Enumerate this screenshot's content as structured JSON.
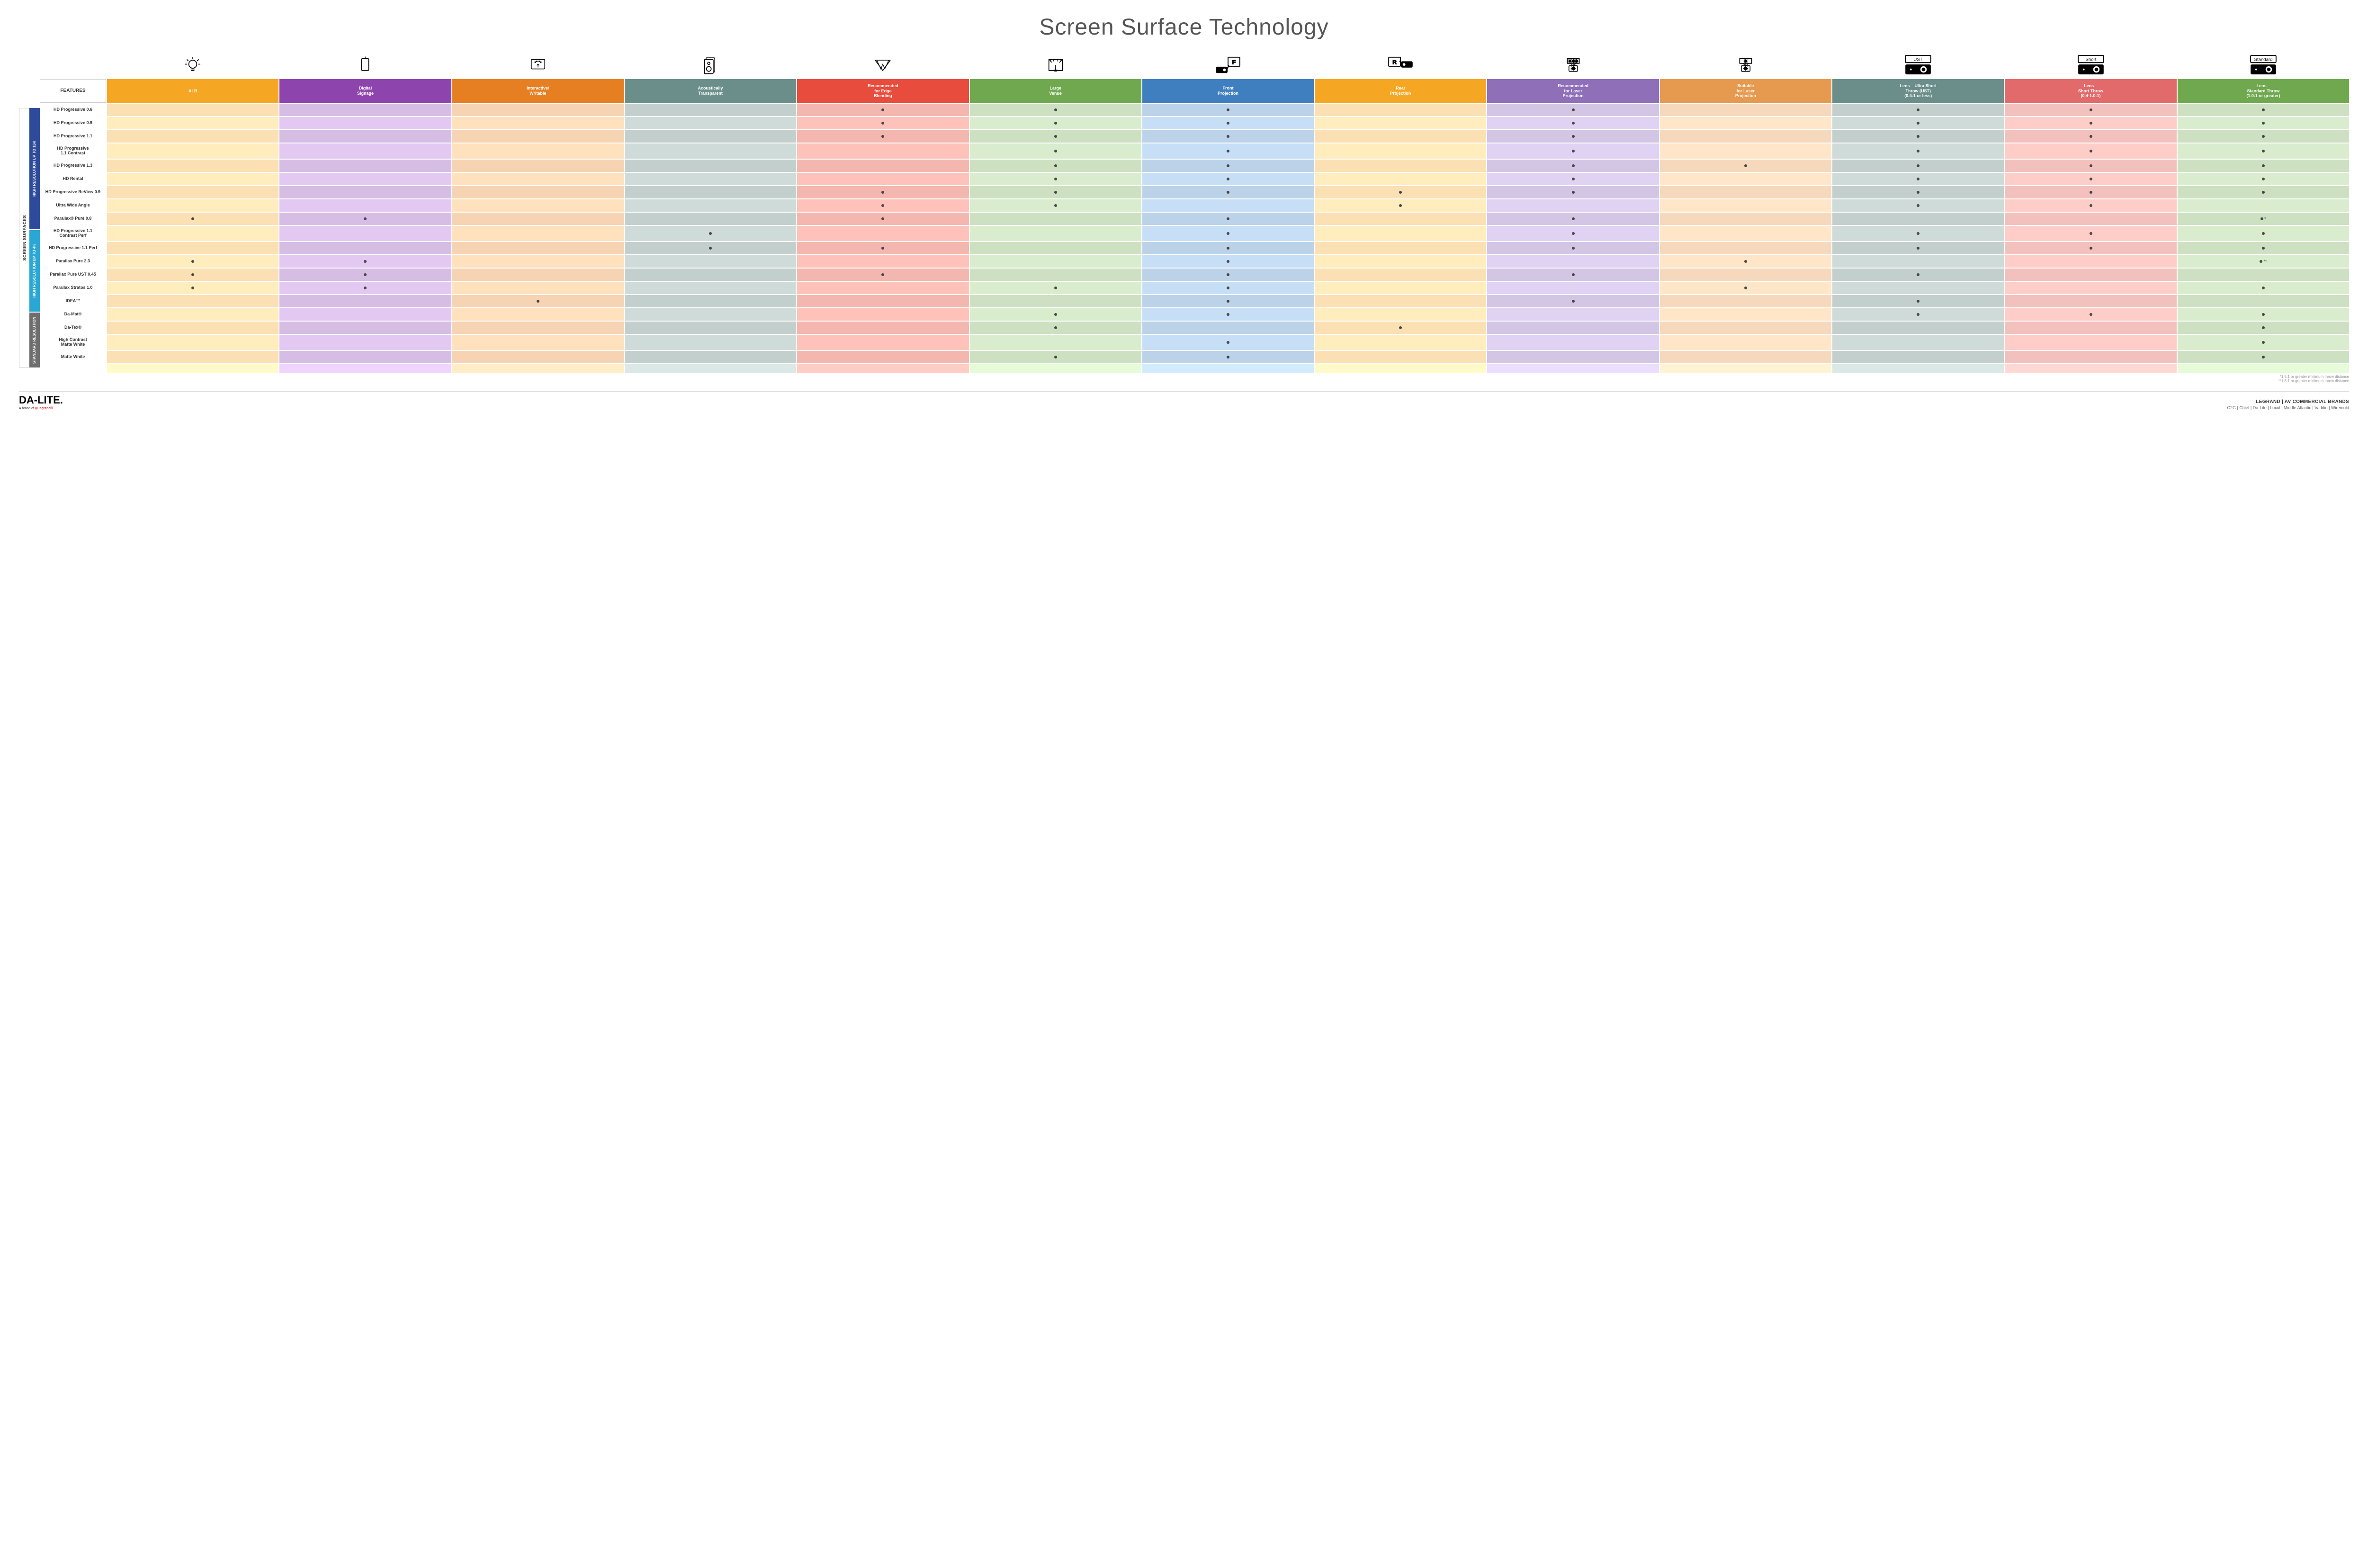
{
  "title": "Screen Surface Technology",
  "columns": [
    {
      "key": "features",
      "label": "FEATURES",
      "color": "#ffffff",
      "light": "#ffffff",
      "icon": null
    },
    {
      "key": "alr",
      "label": "ALR",
      "color": "#f5a623",
      "light": "#fbe0b3",
      "icon": "bulb"
    },
    {
      "key": "signage",
      "label": "Digital\nSignage",
      "color": "#8e44ad",
      "light": "#d6bde3",
      "icon": "kiosk"
    },
    {
      "key": "interactive",
      "label": "Interactive/\nWritable",
      "color": "#e67e22",
      "light": "#f6d4b3",
      "icon": "touch"
    },
    {
      "key": "acoustic",
      "label": "Acoustically\nTransparent",
      "color": "#6b8e8a",
      "light": "#c3cfcd",
      "icon": "speaker"
    },
    {
      "key": "edge",
      "label": "Recommended\nfor Edge\nBlending",
      "color": "#e74c3c",
      "light": "#f4b7af",
      "icon": "blend"
    },
    {
      "key": "venue",
      "label": "Large\nVenue",
      "color": "#6fa84f",
      "light": "#cde0c2",
      "icon": "stage"
    },
    {
      "key": "front",
      "label": "Front\nProjection",
      "color": "#3f7fbf",
      "light": "#bcd2e8",
      "icon": "front"
    },
    {
      "key": "rear",
      "label": "Rear\nProjection",
      "color": "#f5a623",
      "light": "#fbe0b3",
      "icon": "rear"
    },
    {
      "key": "laserR",
      "label": "Recommended\nfor Laser\nProjection",
      "color": "#8e6fb8",
      "light": "#d3c6e4",
      "icon": "laser3"
    },
    {
      "key": "laserS",
      "label": "Suitable\nfor Laser\nProjection",
      "color": "#e69a50",
      "light": "#f6d9bd",
      "icon": "laser1"
    },
    {
      "key": "ust",
      "label": "Lens – Ultra Short\nThrow (UST)\n(0.4:1 or less)",
      "color": "#6b8e8a",
      "light": "#c3cfcd",
      "icon": "proj-ust"
    },
    {
      "key": "short",
      "label": "Lens –\nShort Throw\n(0.4-1.0:1)",
      "color": "#e26a6a",
      "light": "#f3c1bd",
      "icon": "proj-short"
    },
    {
      "key": "std",
      "label": "Lens –\nStandard Throw\n(1.0:1 or greater)",
      "color": "#6fa84f",
      "light": "#cde0c2",
      "icon": "proj-std"
    }
  ],
  "groups": [
    {
      "label": "HIGH RESOLUTION UP TO 16K",
      "color": "#2e4b9b",
      "rows": [
        "r0",
        "r1",
        "r2",
        "r3",
        "r4",
        "r5",
        "r6",
        "r7",
        "r8"
      ]
    },
    {
      "label": "HIGH RESOLUTION UP TO 4K",
      "color": "#2aa7d4",
      "rows": [
        "r9",
        "r10",
        "r11",
        "r12",
        "r13",
        "r14"
      ]
    },
    {
      "label": "STANDARD RESOLUTION",
      "color": "#6e6e6e",
      "rows": [
        "r15",
        "r16",
        "r17",
        "r18"
      ]
    }
  ],
  "outerLabel": "SCREEN SURFACES",
  "rows": [
    {
      "id": "r0",
      "name": "HD Progressive 0.6",
      "cells": {
        "edge": "•",
        "venue": "•",
        "front": "•",
        "laserR": "•",
        "ust": "•",
        "short": "•",
        "std": "•"
      }
    },
    {
      "id": "r1",
      "name": "HD Progressive 0.9",
      "cells": {
        "edge": "•",
        "venue": "•",
        "front": "•",
        "laserR": "•",
        "ust": "•",
        "short": "•",
        "std": "•"
      }
    },
    {
      "id": "r2",
      "name": "HD Progressive 1.1",
      "cells": {
        "edge": "•",
        "venue": "•",
        "front": "•",
        "laserR": "•",
        "ust": "•",
        "short": "•",
        "std": "•"
      }
    },
    {
      "id": "r3",
      "name": "HD Progressive\n1.1 Contrast",
      "tall": true,
      "cells": {
        "venue": "•",
        "front": "•",
        "laserR": "•",
        "ust": "•",
        "short": "•",
        "std": "•"
      }
    },
    {
      "id": "r4",
      "name": "HD Progressive 1.3",
      "cells": {
        "venue": "•",
        "front": "•",
        "laserR": "•",
        "laserS": "•",
        "ust": "•",
        "short": "•",
        "std": "•"
      }
    },
    {
      "id": "r5",
      "name": "HD Rental",
      "cells": {
        "venue": "•",
        "front": "•",
        "laserR": "•",
        "ust": "•",
        "short": "•",
        "std": "•"
      }
    },
    {
      "id": "r6",
      "name": "HD Progressive ReView 0.9",
      "cells": {
        "edge": "•",
        "venue": "•",
        "front": "•",
        "rear": "•",
        "laserR": "•",
        "ust": "•",
        "short": "•",
        "std": "•"
      }
    },
    {
      "id": "r7",
      "name": "Ultra Wide Angle",
      "cells": {
        "edge": "•",
        "venue": "•",
        "rear": "•",
        "ust": "•",
        "short": "•"
      }
    },
    {
      "id": "r8",
      "name": "Parallax® Pure 0.8",
      "cells": {
        "alr": "•",
        "signage": "•",
        "edge": "•",
        "front": "•",
        "laserR": "•",
        "std": "•*"
      }
    },
    {
      "id": "r9",
      "name": "HD Progressive 1.1\nContrast Perf",
      "tall": true,
      "cells": {
        "acoustic": "•",
        "front": "•",
        "laserR": "•",
        "ust": "•",
        "short": "•",
        "std": "•"
      }
    },
    {
      "id": "r10",
      "name": "HD Progressive 1.1 Perf",
      "cells": {
        "acoustic": "•",
        "edge": "•",
        "front": "•",
        "laserR": "•",
        "ust": "•",
        "short": "•",
        "std": "•"
      }
    },
    {
      "id": "r11",
      "name": "Parallax Pure 2.3",
      "cells": {
        "alr": "•",
        "signage": "•",
        "front": "•",
        "laserS": "•",
        "std": "•**"
      }
    },
    {
      "id": "r12",
      "name": "Parallax Pure UST 0.45",
      "cells": {
        "alr": "•",
        "signage": "•",
        "edge": "•",
        "front": "•",
        "laserR": "•",
        "ust": "•"
      }
    },
    {
      "id": "r13",
      "name": "Parallax Stratos 1.0",
      "cells": {
        "alr": "•",
        "signage": "•",
        "venue": "•",
        "front": "•",
        "laserS": "•",
        "std": "•"
      }
    },
    {
      "id": "r14",
      "name": "IDEA™",
      "cells": {
        "interactive": "•",
        "front": "•",
        "laserR": "•",
        "ust": "•"
      }
    },
    {
      "id": "r15",
      "name": "Da-Mat®",
      "cells": {
        "venue": "•",
        "front": "•",
        "ust": "•",
        "short": "•",
        "std": "•"
      }
    },
    {
      "id": "r16",
      "name": "Da-Tex®",
      "cells": {
        "venue": "•",
        "rear": "•",
        "std": "•"
      }
    },
    {
      "id": "r17",
      "name": "High Contrast\nMatte White",
      "tall": true,
      "cells": {
        "front": "•",
        "std": "•"
      }
    },
    {
      "id": "r18",
      "name": "Matte White",
      "cells": {
        "venue": "•",
        "front": "•",
        "std": "•"
      }
    }
  ],
  "foot_colors_light": true,
  "footnotes": [
    "*1.5:1 or greater minimum throw distance",
    "**1.8:1 or greater minimum throw distance"
  ],
  "footer": {
    "brand_main": "DA-LITE.",
    "brand_sub_prefix": "A brand of ",
    "brand_sub_logo": "⊞ legrand®",
    "right_top": "LEGRAND | AV COMMERCIAL BRANDS",
    "right_brands": "C2G  |  Chief  |  Da-Lite  |  Luxul  |  Middle Atlantic  |  Vaddio  |  Wiremold"
  },
  "icons_text": {
    "proj-ust": "UST",
    "proj-short": "Short",
    "proj-std": "Standard",
    "front": "F",
    "rear": "R"
  }
}
